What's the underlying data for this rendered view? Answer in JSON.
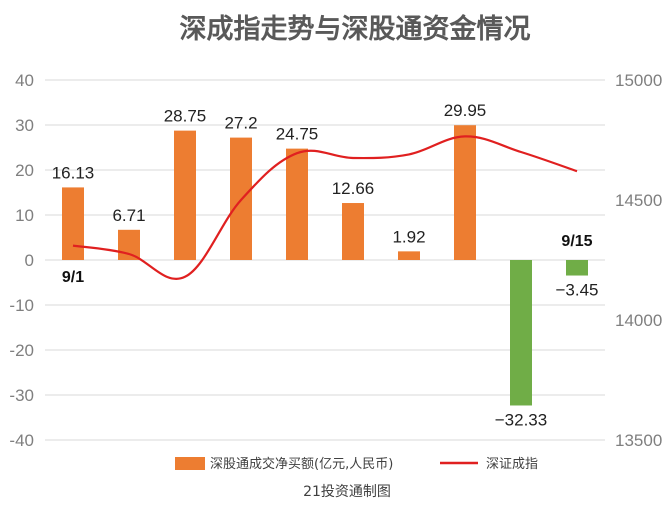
{
  "chart_data": {
    "type": "bar",
    "title": "深成指走势与深股通资金情况",
    "source": "21投资通制图",
    "colors": {
      "bar_positive": "#ED7D31",
      "bar_negative": "#70AD47",
      "line": "#E02020",
      "grid": "#D9D9D9"
    },
    "annotations": [
      {
        "category_index": 0,
        "text": "9/1",
        "position": "below"
      },
      {
        "category_index": 9,
        "text": "9/15",
        "position": "above"
      }
    ],
    "legend": {
      "position": "bottom",
      "items": [
        {
          "label": "深股通成交净买额(亿元,人民币)",
          "marker": "bar"
        },
        {
          "label": "深证成指",
          "marker": "line"
        }
      ]
    },
    "grid": true,
    "axes": {
      "left": {
        "ylim": [
          -40,
          40
        ],
        "ticks": [
          "40",
          "30",
          "20",
          "10",
          "0",
          "-10",
          "-20",
          "-30",
          "-40"
        ]
      },
      "right": {
        "ylim": [
          13500,
          15000
        ],
        "ticks": [
          "15000",
          "14500",
          "14000",
          "13500"
        ]
      }
    },
    "series": [
      {
        "name": "深股通成交净买额(亿元,人民币)",
        "type": "bar",
        "axis": "left",
        "values": [
          16.13,
          6.71,
          28.75,
          27.2,
          24.75,
          12.66,
          1.92,
          29.95,
          -32.33,
          -3.45
        ],
        "labels": [
          "16.13",
          "6.71",
          "28.75",
          "27.2",
          "24.75",
          "12.66",
          "1.92",
          "29.95",
          "−32.33",
          "−3.45"
        ]
      },
      {
        "name": "深证成指",
        "type": "line",
        "axis": "right",
        "values": [
          14310,
          14275,
          14180,
          14500,
          14695,
          14675,
          14690,
          14765,
          14700,
          14620
        ]
      }
    ]
  }
}
